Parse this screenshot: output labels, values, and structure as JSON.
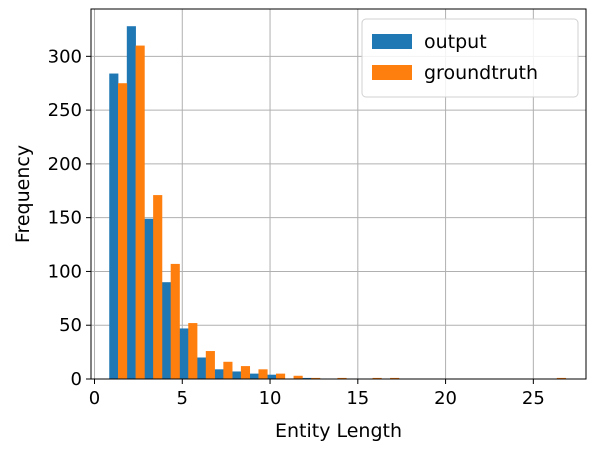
{
  "chart_data": {
    "type": "bar",
    "xlabel": "Entity Length",
    "ylabel": "Frequency",
    "xlim": [
      -0.2,
      28
    ],
    "ylim": [
      0,
      344
    ],
    "xticks": [
      0,
      5,
      10,
      15,
      20,
      25
    ],
    "yticks": [
      0,
      50,
      100,
      150,
      200,
      250,
      300
    ],
    "grid": true,
    "legend_position": "top-right",
    "bin_width": 0.52,
    "series": [
      {
        "name": "output",
        "color": "#1f77b4",
        "bins": [
          {
            "x": 1.1,
            "value": 284
          },
          {
            "x": 2.1,
            "value": 328
          },
          {
            "x": 3.1,
            "value": 149
          },
          {
            "x": 4.1,
            "value": 90
          },
          {
            "x": 5.1,
            "value": 47
          },
          {
            "x": 6.1,
            "value": 20
          },
          {
            "x": 7.1,
            "value": 9
          },
          {
            "x": 8.1,
            "value": 7
          },
          {
            "x": 9.1,
            "value": 5
          },
          {
            "x": 10.1,
            "value": 4
          },
          {
            "x": 12.1,
            "value": 1
          }
        ]
      },
      {
        "name": "groundtruth",
        "color": "#ff7f0e",
        "bins": [
          {
            "x": 1.6,
            "value": 275
          },
          {
            "x": 2.6,
            "value": 310
          },
          {
            "x": 3.6,
            "value": 171
          },
          {
            "x": 4.6,
            "value": 107
          },
          {
            "x": 5.6,
            "value": 52
          },
          {
            "x": 6.6,
            "value": 26
          },
          {
            "x": 7.6,
            "value": 16
          },
          {
            "x": 8.6,
            "value": 12
          },
          {
            "x": 9.6,
            "value": 9
          },
          {
            "x": 10.6,
            "value": 5
          },
          {
            "x": 11.6,
            "value": 3
          },
          {
            "x": 12.6,
            "value": 1
          },
          {
            "x": 14.1,
            "value": 1
          },
          {
            "x": 16.1,
            "value": 1
          },
          {
            "x": 17.1,
            "value": 1
          },
          {
            "x": 26.6,
            "value": 1
          }
        ]
      }
    ]
  }
}
